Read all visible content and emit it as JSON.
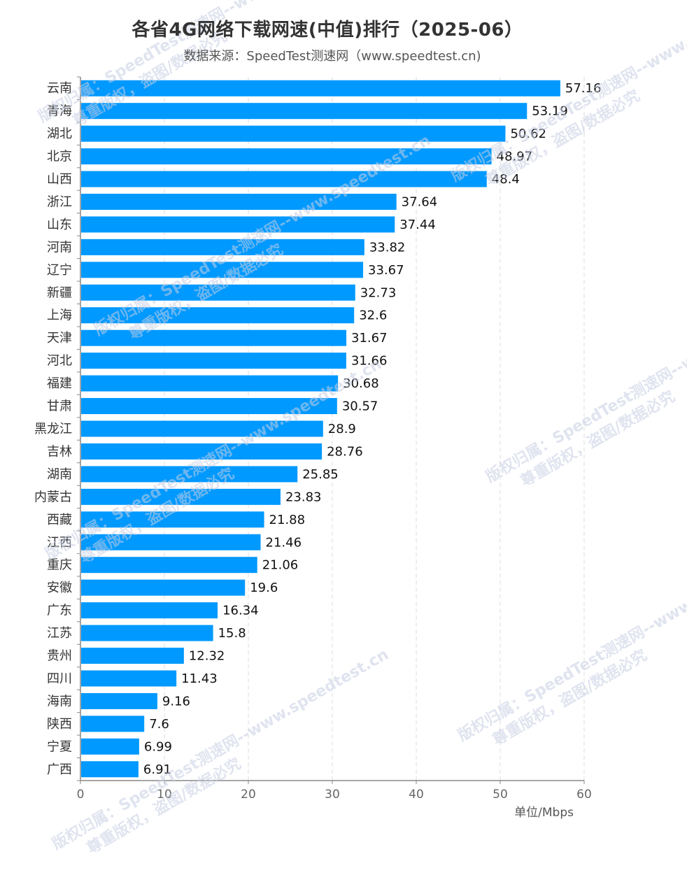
{
  "title": "各省4G网络下载网速(中值)排行（2025-06）",
  "subtitle": "数据来源：SpeedTest测速网（www.speedtest.cn)",
  "colors": {
    "bar": "#0099ff",
    "axis": "#888888",
    "grid": "#dddddd"
  },
  "watermark_lines": [
    "版权归属：SpeedTest测速网--www.speedtest.cn",
    "尊重版权，盗图/数据必究"
  ],
  "chart_data": {
    "type": "bar",
    "orientation": "horizontal",
    "title": "各省4G网络下载网速(中值)排行（2025-06）",
    "xlabel": "单位/Mbps",
    "xlim": [
      0,
      60
    ],
    "xticks": [
      0,
      10,
      20,
      30,
      40,
      50,
      60
    ],
    "grid": "vertical dashed",
    "categories": [
      "云南",
      "青海",
      "湖北",
      "北京",
      "山西",
      "浙江",
      "山东",
      "河南",
      "辽宁",
      "新疆",
      "上海",
      "天津",
      "河北",
      "福建",
      "甘肃",
      "黑龙江",
      "吉林",
      "湖南",
      "内蒙古",
      "西藏",
      "江西",
      "重庆",
      "安徽",
      "广东",
      "江苏",
      "贵州",
      "四川",
      "海南",
      "陕西",
      "宁夏",
      "广西"
    ],
    "values": [
      57.16,
      53.19,
      50.62,
      48.97,
      48.4,
      37.64,
      37.44,
      33.82,
      33.67,
      32.73,
      32.6,
      31.67,
      31.66,
      30.68,
      30.57,
      28.9,
      28.76,
      25.85,
      23.83,
      21.88,
      21.46,
      21.06,
      19.6,
      16.34,
      15.8,
      12.32,
      11.43,
      9.16,
      7.6,
      6.99,
      6.91
    ]
  }
}
